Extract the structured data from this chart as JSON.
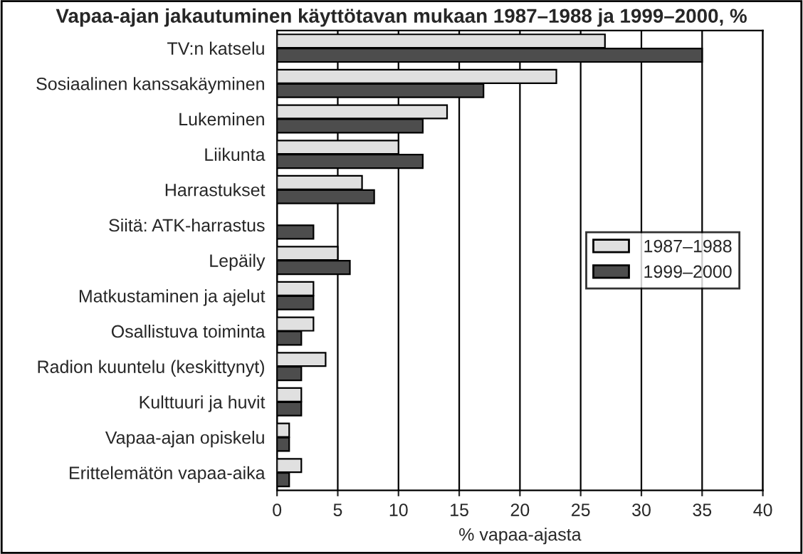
{
  "chart_data": {
    "type": "bar",
    "orientation": "horizontal",
    "title": "Vapaa-ajan jakautuminen käyttötavan mukaan 1987–1988 ja 1999–2000, %",
    "xlabel": "% vapaa-ajasta",
    "categories": [
      "TV:n katselu",
      "Sosiaalinen kanssakäyminen",
      "Lukeminen",
      "Liikunta",
      "Harrastukset",
      "Siitä: ATK-harrastus",
      "Lepäily",
      "Matkustaminen ja ajelut",
      "Osallistuva toiminta",
      "Radion kuuntelu (keskittynyt)",
      "Kulttuuri ja huvit",
      "Vapaa-ajan opiskelu",
      "Erittelemätön vapaa-aika"
    ],
    "series": [
      {
        "name": "1987–1988",
        "color": "#e0e0e0",
        "values": [
          27,
          23,
          14,
          10,
          7,
          null,
          5,
          3,
          3,
          4,
          2,
          1,
          2
        ]
      },
      {
        "name": "1999–2000",
        "color": "#4d4d4d",
        "values": [
          35,
          17,
          12,
          12,
          8,
          3,
          6,
          3,
          2,
          2,
          2,
          1,
          1
        ]
      }
    ],
    "xlim": [
      0,
      40
    ],
    "xticks": [
      0,
      5,
      10,
      15,
      20,
      25,
      30,
      35,
      40
    ],
    "grid": "x",
    "legend": "right"
  }
}
